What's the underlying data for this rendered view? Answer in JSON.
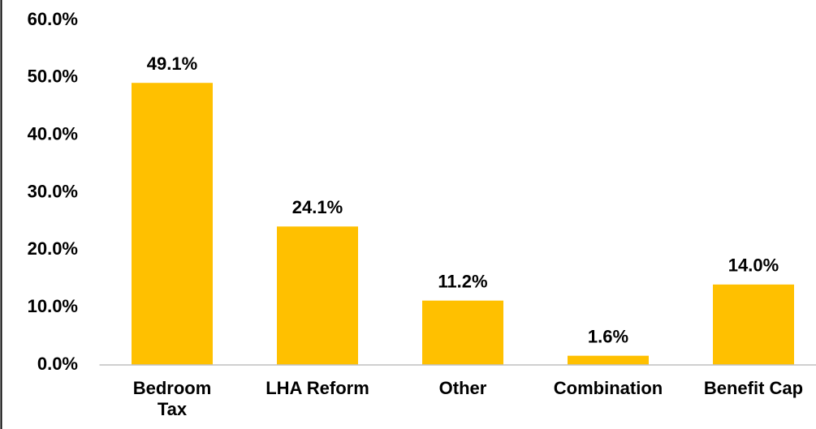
{
  "chart_data": {
    "type": "bar",
    "categories": [
      "Bedroom Tax",
      "LHA Reform",
      "Other",
      "Combination",
      "Benefit Cap"
    ],
    "values": [
      49.1,
      24.1,
      11.2,
      1.6,
      14.0
    ],
    "value_labels": [
      "49.1%",
      "24.1%",
      "11.2%",
      "1.6%",
      "14.0%"
    ],
    "color": "#ffc000",
    "ylim": [
      0,
      60
    ],
    "yticks": [
      {
        "value": 0,
        "label": "0.0%"
      },
      {
        "value": 10,
        "label": "10.0%"
      },
      {
        "value": 20,
        "label": "20.0%"
      },
      {
        "value": 30,
        "label": "30.0%"
      },
      {
        "value": 40,
        "label": "40.0%"
      },
      {
        "value": 50,
        "label": "50.0%"
      },
      {
        "value": 60,
        "label": "60.0%"
      }
    ],
    "grid": false
  }
}
